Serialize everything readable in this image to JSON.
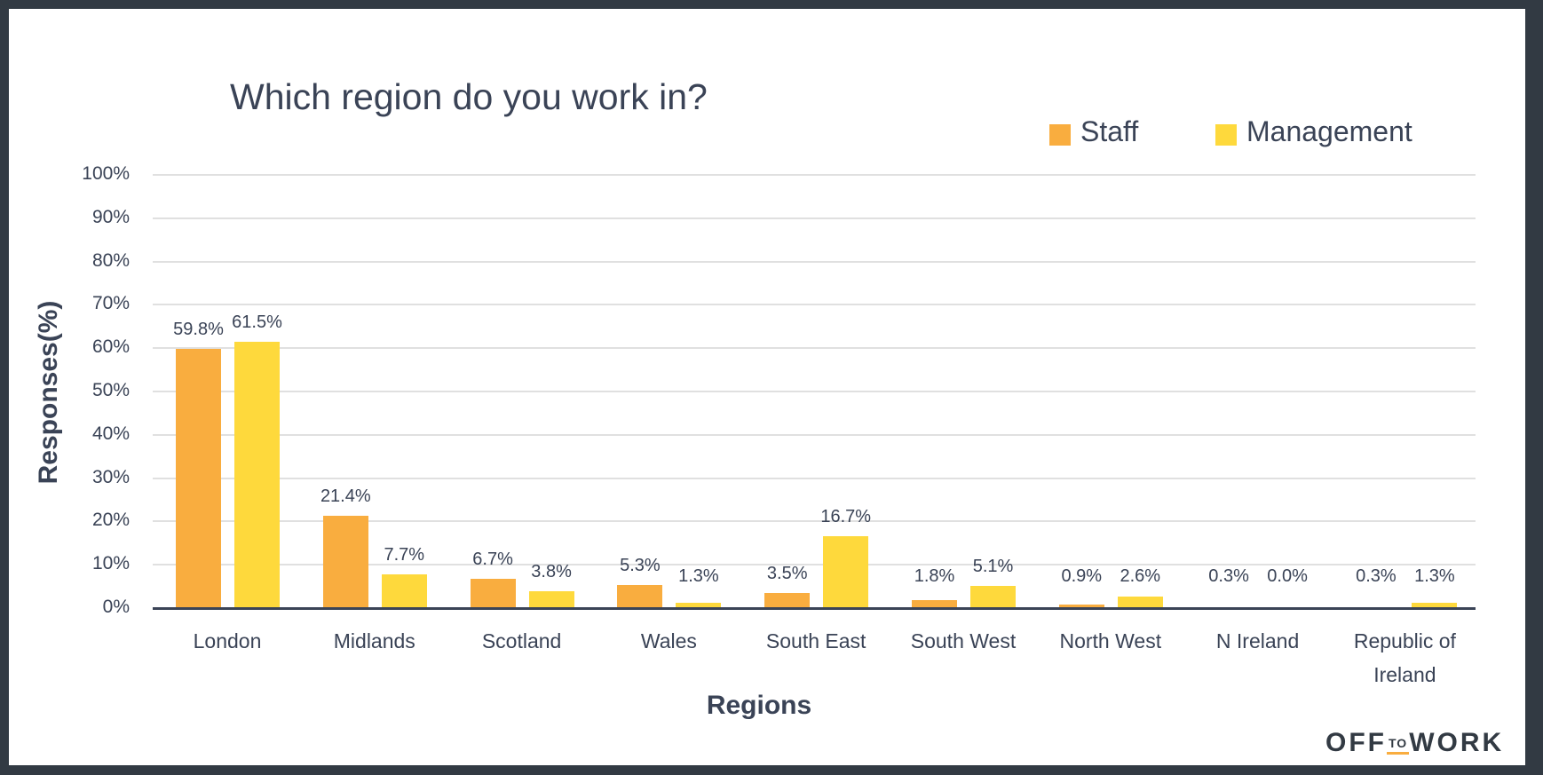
{
  "title": "Which region do you work in?",
  "legend": [
    {
      "label": "Staff",
      "color": "#f9ad3f"
    },
    {
      "label": "Management",
      "color": "#fed93c"
    }
  ],
  "axes": {
    "ylabel": "Responses(%)",
    "xlabel": "Regions",
    "yticks": [
      "100%",
      "90%",
      "80%",
      "70%",
      "60%",
      "50%",
      "40%",
      "30%",
      "20%",
      "10%",
      "0%"
    ]
  },
  "logo": {
    "part1": "OFF",
    "part2": "TO",
    "part3": "WORK"
  },
  "chart_data": {
    "type": "bar",
    "title": "Which region do you work in?",
    "xlabel": "Regions",
    "ylabel": "Responses(%)",
    "ylim": [
      0,
      100
    ],
    "grid": true,
    "legend_position": "top-right",
    "categories": [
      "London",
      "Midlands",
      "Scotland",
      "Wales",
      "South East",
      "South West",
      "North West",
      "N Ireland",
      "Republic of Ireland"
    ],
    "series": [
      {
        "name": "Staff",
        "color": "#f9ad3f",
        "values": [
          59.8,
          21.4,
          6.7,
          5.3,
          3.5,
          1.8,
          0.9,
          0.3,
          0.3
        ],
        "labels": [
          "59.8%",
          "21.4%",
          "6.7%",
          "5.3%",
          "3.5%",
          "1.8%",
          "0.9%",
          "0.3%",
          "0.3%"
        ]
      },
      {
        "name": "Management",
        "color": "#fed93c",
        "values": [
          61.5,
          7.7,
          3.8,
          1.3,
          16.7,
          5.1,
          2.6,
          0.0,
          1.3
        ],
        "labels": [
          "61.5%",
          "7.7%",
          "3.8%",
          "1.3%",
          "16.7%",
          "5.1%",
          "2.6%",
          "0.0%",
          "1.3%"
        ]
      }
    ]
  }
}
